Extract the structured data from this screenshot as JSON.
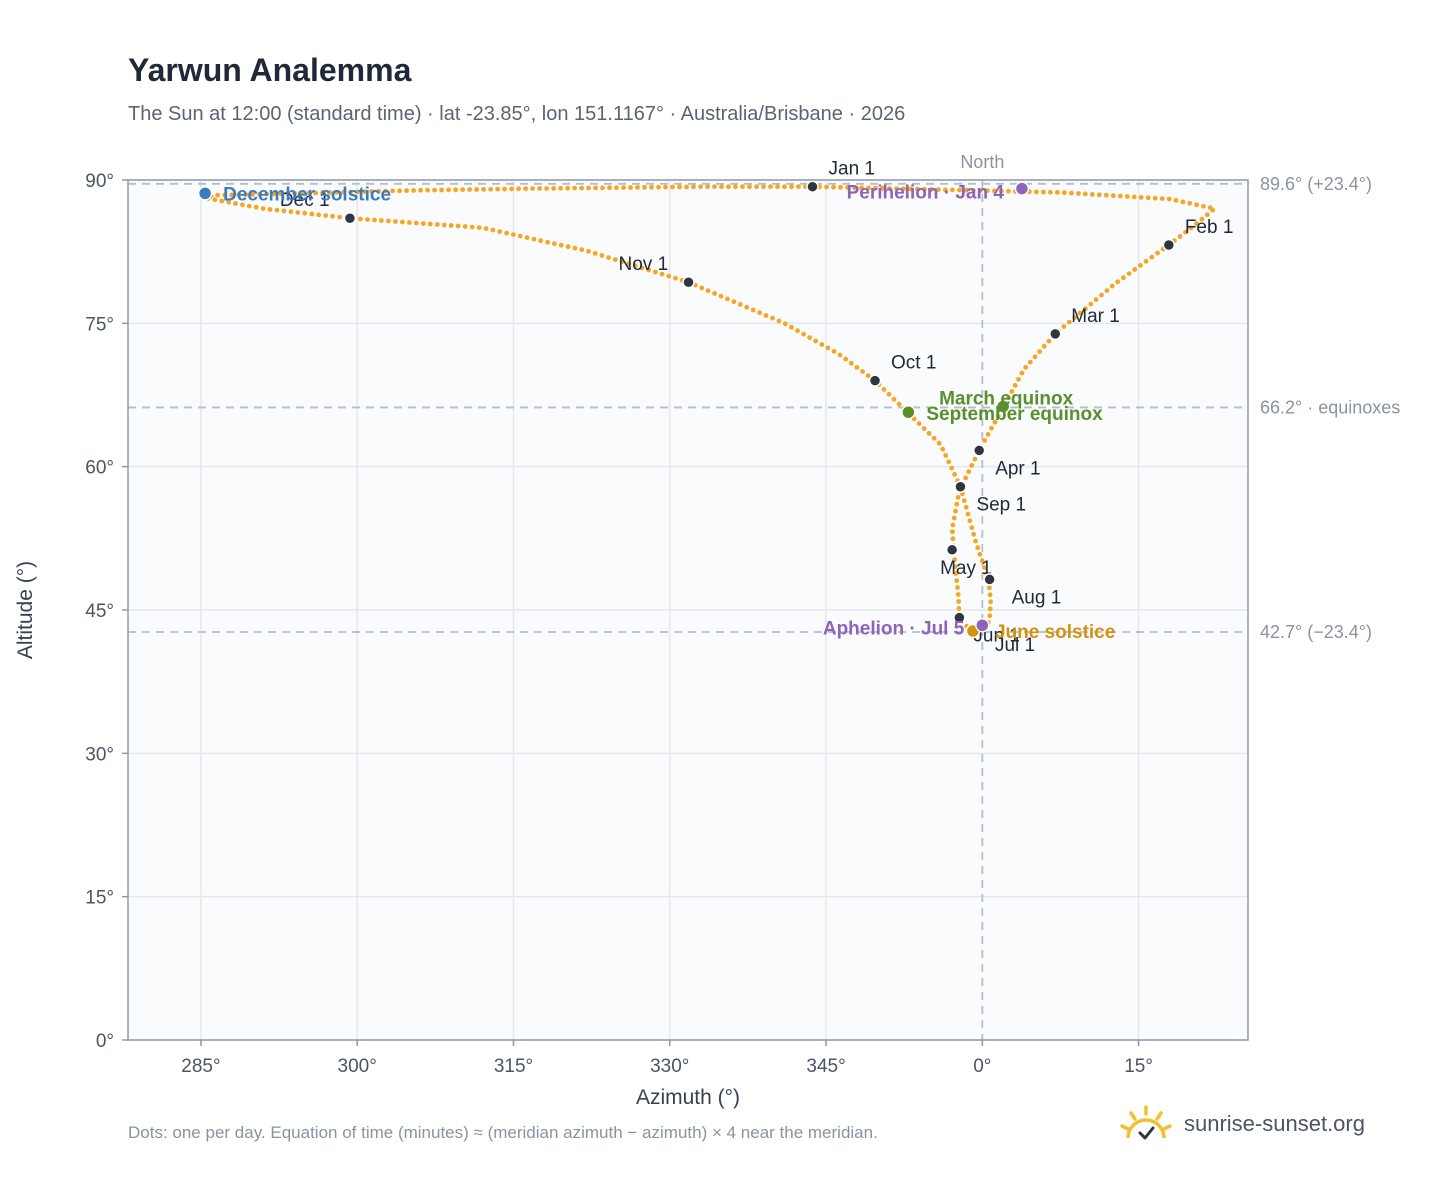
{
  "header": {
    "title": "Yarwun Analemma",
    "subtitle": "The Sun at 12:00 (standard time) · lat -23.85°, lon 151.1167° · Australia/Brisbane · 2026"
  },
  "footer": {
    "note": "Dots: one per day. Equation of time (minutes) ≈ (meridian azimuth − azimuth) × 4 near the meridian.",
    "brand": "sunrise-sunset.org"
  },
  "colors": {
    "path": "#f5a623",
    "month_marker": "#2f3542",
    "december_solstice": "#3b7bbf",
    "june_solstice": "#d4920f",
    "equinox": "#5a8f2e",
    "apsis": "#8e64b8",
    "background": "#f9fbfd",
    "grid": "#e3e8ee",
    "reference_line": "#b4bfcc",
    "brand_icon": "#f2c12e"
  },
  "chart_data": {
    "type": "scatter",
    "xlabel": "Azimuth (°)",
    "ylabel": "Altitude (°)",
    "xlim": [
      278,
      25.5
    ],
    "ylim": [
      0,
      90
    ],
    "x_ticks": [
      285,
      300,
      315,
      330,
      345,
      0,
      15
    ],
    "x_tick_labels": [
      "285°",
      "300°",
      "315°",
      "330°",
      "345°",
      "0°",
      "15°"
    ],
    "y_ticks": [
      0,
      15,
      30,
      45,
      60,
      75,
      90
    ],
    "y_tick_labels": [
      "0°",
      "15°",
      "30°",
      "45°",
      "60°",
      "75°",
      "90°"
    ],
    "north_line": {
      "azimuth": 0,
      "label": "North"
    },
    "reference_lines": [
      {
        "altitude": 89.6,
        "label": "89.6° (+23.4°)"
      },
      {
        "altitude": 66.2,
        "label": "66.2° · equinoxes"
      },
      {
        "altitude": 42.7,
        "label": "42.7° (−23.4°)"
      }
    ],
    "series": [
      {
        "type": "line",
        "points": [
          [
            343.7,
            89.3
          ],
          [
            7.5,
            88.7
          ],
          [
            18.0,
            88.0
          ],
          [
            22.3,
            87.0
          ],
          [
            20.3,
            85.2
          ],
          [
            17.9,
            83.2
          ],
          [
            12.8,
            79.2
          ],
          [
            7.0,
            73.9
          ],
          [
            4.0,
            70.2
          ],
          [
            2.0,
            66.2
          ],
          [
            -0.3,
            61.7
          ],
          [
            -2.2,
            57.5
          ],
          [
            -2.9,
            53.5
          ],
          [
            -2.6,
            49.5
          ],
          [
            -2.3,
            46.5
          ],
          [
            -2.2,
            44.0
          ],
          [
            -1.0,
            42.8
          ],
          [
            0.3,
            43.0
          ],
          [
            0.7,
            44.0
          ],
          [
            0.8,
            46.0
          ],
          [
            0.6,
            48.2
          ],
          [
            -0.6,
            52.0
          ],
          [
            -2.1,
            57.9
          ],
          [
            -4.0,
            62.3
          ],
          [
            -7.1,
            65.6
          ],
          [
            -10.3,
            69.0
          ],
          [
            -13.8,
            71.8
          ],
          [
            -19.0,
            75.0
          ],
          [
            -28.2,
            79.3
          ],
          [
            -38.0,
            82.6
          ],
          [
            -48.0,
            85.0
          ],
          [
            -60.7,
            86.0
          ],
          [
            -69.0,
            87.0
          ],
          [
            -74.5,
            88.1
          ],
          [
            -73.8,
            88.4
          ],
          [
            -66.0,
            88.6
          ],
          [
            -55.0,
            88.9
          ],
          [
            -43.0,
            89.1
          ],
          [
            -27.0,
            89.3
          ],
          [
            -16.3,
            89.3
          ]
        ]
      },
      {
        "type": "scatter",
        "name": "Month starts",
        "points": [
          {
            "label": "Jan 1",
            "azimuth": 343.7,
            "altitude": 89.3
          },
          {
            "label": "Feb 1",
            "azimuth": 17.9,
            "altitude": 83.2
          },
          {
            "label": "Mar 1",
            "azimuth": 7.0,
            "altitude": 73.9
          },
          {
            "label": "Apr 1",
            "azimuth": -0.3,
            "altitude": 61.7
          },
          {
            "label": "May 1",
            "azimuth": -2.9,
            "altitude": 51.3
          },
          {
            "label": "Jun 1",
            "azimuth": -2.2,
            "altitude": 44.2
          },
          {
            "label": "Jul 1",
            "azimuth": -0.9,
            "altitude": 42.8
          },
          {
            "label": "Aug 1",
            "azimuth": 0.7,
            "altitude": 48.2
          },
          {
            "label": "Sep 1",
            "azimuth": -2.1,
            "altitude": 57.9
          },
          {
            "label": "Oct 1",
            "azimuth": -10.3,
            "altitude": 69.0
          },
          {
            "label": "Nov 1",
            "azimuth": -28.2,
            "altitude": 79.3
          },
          {
            "label": "Dec 1",
            "azimuth": -60.7,
            "altitude": 86.0
          }
        ]
      },
      {
        "type": "scatter",
        "name": "Events",
        "points": [
          {
            "label": "December solstice",
            "azimuth": 285.4,
            "altitude": 88.6,
            "color": "#3b7bbf"
          },
          {
            "label": "June solstice",
            "azimuth": -0.9,
            "altitude": 42.8,
            "color": "#d4920f"
          },
          {
            "label": "March equinox",
            "azimuth": 2.0,
            "altitude": 66.3,
            "color": "#5a8f2e"
          },
          {
            "label": "September equinox",
            "azimuth": -7.1,
            "altitude": 65.7,
            "color": "#5a8f2e"
          },
          {
            "label": "Perihelion · Jan 4",
            "azimuth": 3.8,
            "altitude": 89.1,
            "color": "#8e64b8"
          },
          {
            "label": "Aphelion · Jul 5",
            "azimuth": 0.0,
            "altitude": 43.4,
            "color": "#8e64b8"
          }
        ]
      }
    ]
  }
}
